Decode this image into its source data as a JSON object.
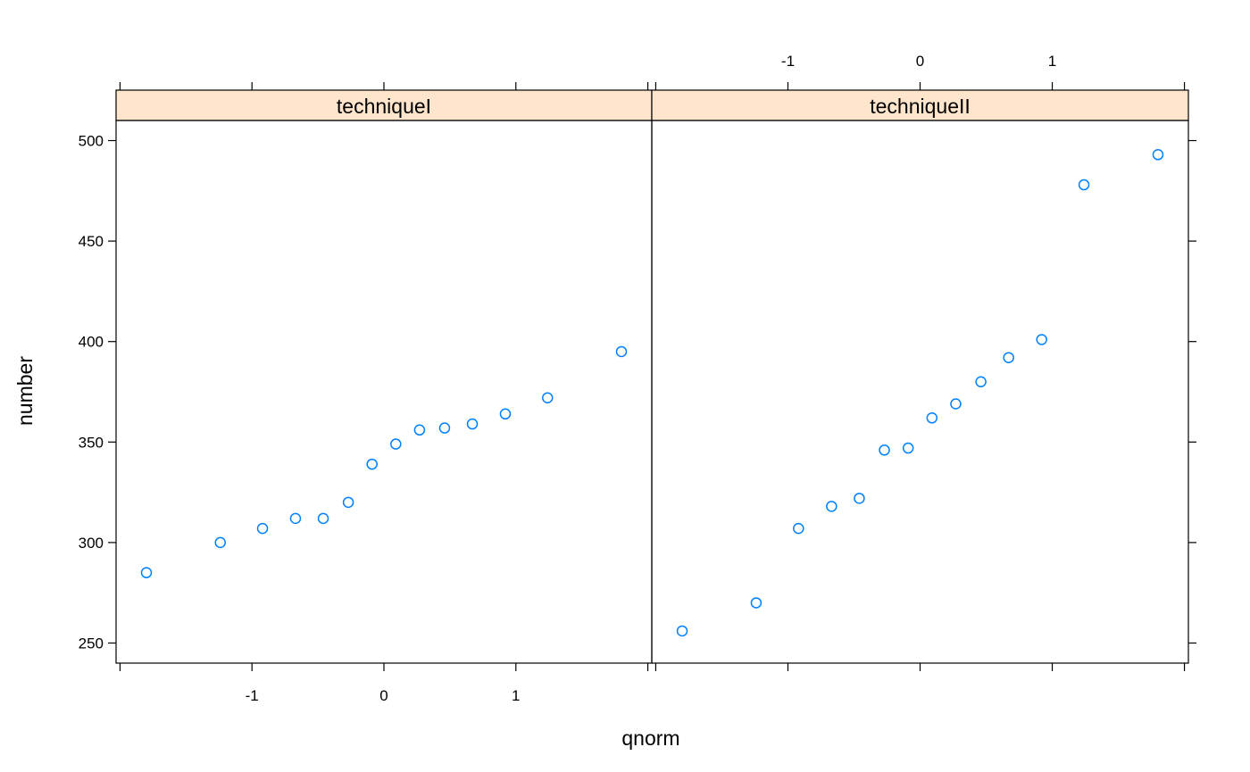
{
  "chart_data": {
    "type": "scatter",
    "xlabel": "qnorm",
    "ylabel": "number",
    "xlim": [
      -2.03,
      2.03
    ],
    "ylim": [
      240,
      510
    ],
    "x_ticks": [
      -1,
      0,
      1
    ],
    "y_ticks": [
      250,
      300,
      350,
      400,
      450,
      500
    ],
    "grid": false,
    "point_color": "#0080ff",
    "strip_color": "#ffe5cc",
    "panels": [
      {
        "strip": "techniqueI",
        "x": [
          -1.8,
          -1.24,
          -0.92,
          -0.67,
          -0.46,
          -0.27,
          -0.09,
          0.09,
          0.27,
          0.46,
          0.67,
          0.92,
          1.24,
          1.8
        ],
        "y": [
          285,
          300,
          307,
          312,
          312,
          320,
          339,
          349,
          356,
          357,
          359,
          364,
          372,
          395
        ]
      },
      {
        "strip": "techniqueII",
        "x": [
          -1.8,
          -1.24,
          -0.92,
          -0.67,
          -0.46,
          -0.27,
          -0.09,
          0.09,
          0.27,
          0.46,
          0.67,
          0.92,
          1.24,
          1.8
        ],
        "y": [
          256,
          270,
          307,
          318,
          322,
          346,
          347,
          362,
          369,
          380,
          392,
          401,
          478,
          493
        ]
      }
    ]
  }
}
